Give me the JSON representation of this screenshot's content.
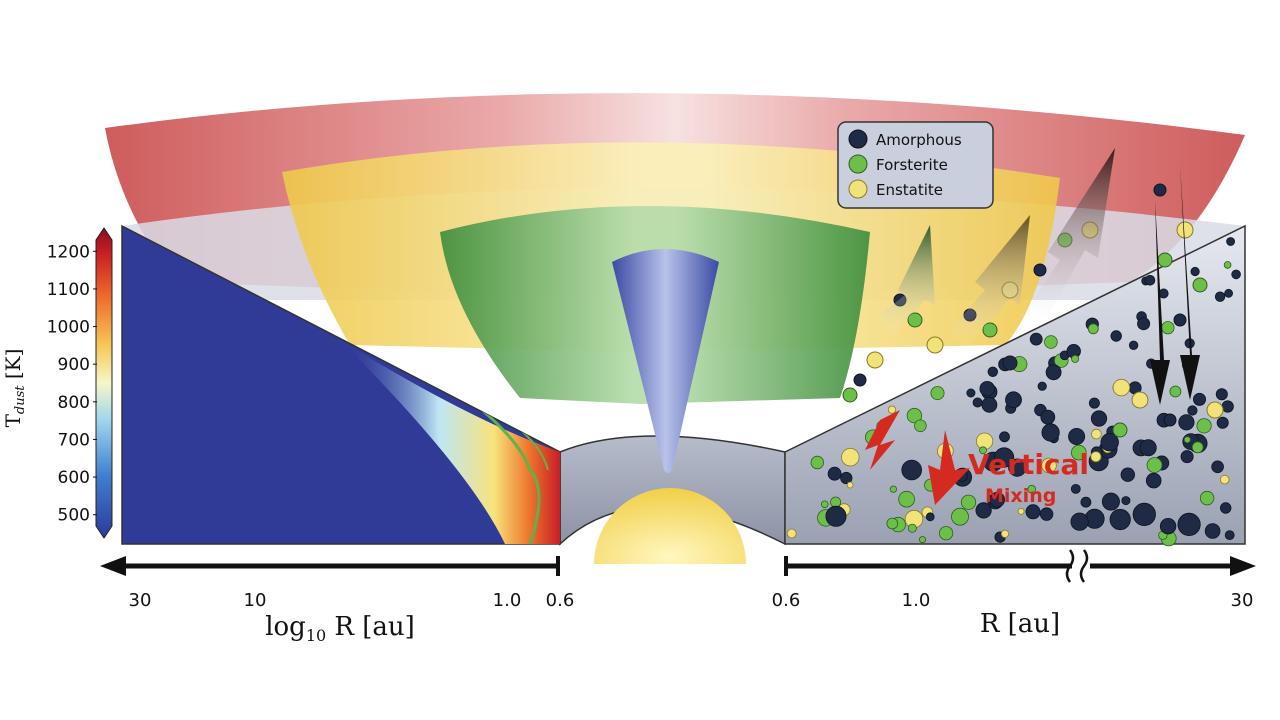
{
  "legend": {
    "items": [
      {
        "label": "Amorphous",
        "color": "#1f2a44"
      },
      {
        "label": "Forsterite",
        "color": "#6cc04a"
      },
      {
        "label": "Enstatite",
        "color": "#f2e27a"
      }
    ]
  },
  "colorbar": {
    "label_base": "T",
    "label_sub": "dust",
    "label_unit": " [K]",
    "ticks": [
      "1200",
      "1100",
      "1000",
      "900",
      "800",
      "700",
      "600",
      "500"
    ],
    "tick_values": [
      1200,
      1100,
      1000,
      900,
      800,
      700,
      600,
      500
    ],
    "range": [
      470,
      1230
    ],
    "colors": [
      "#2b3a9a",
      "#3f7fd0",
      "#9fd6ef",
      "#f6f7c8",
      "#f6c85a",
      "#ee6a2c",
      "#c81e23",
      "#8b0b1f"
    ]
  },
  "left_axis": {
    "ticks": [
      "30",
      "10",
      "1.0",
      "0.6"
    ],
    "label_prefix": "log",
    "label_sub": "10",
    "label_suffix": " R [au]"
  },
  "right_axis": {
    "ticks": [
      "0.6",
      "1.0",
      "30"
    ],
    "label": "R [au]"
  },
  "annotation": {
    "line1": "Vertical",
    "line2": "Mixing",
    "color": "#d42a20"
  }
}
